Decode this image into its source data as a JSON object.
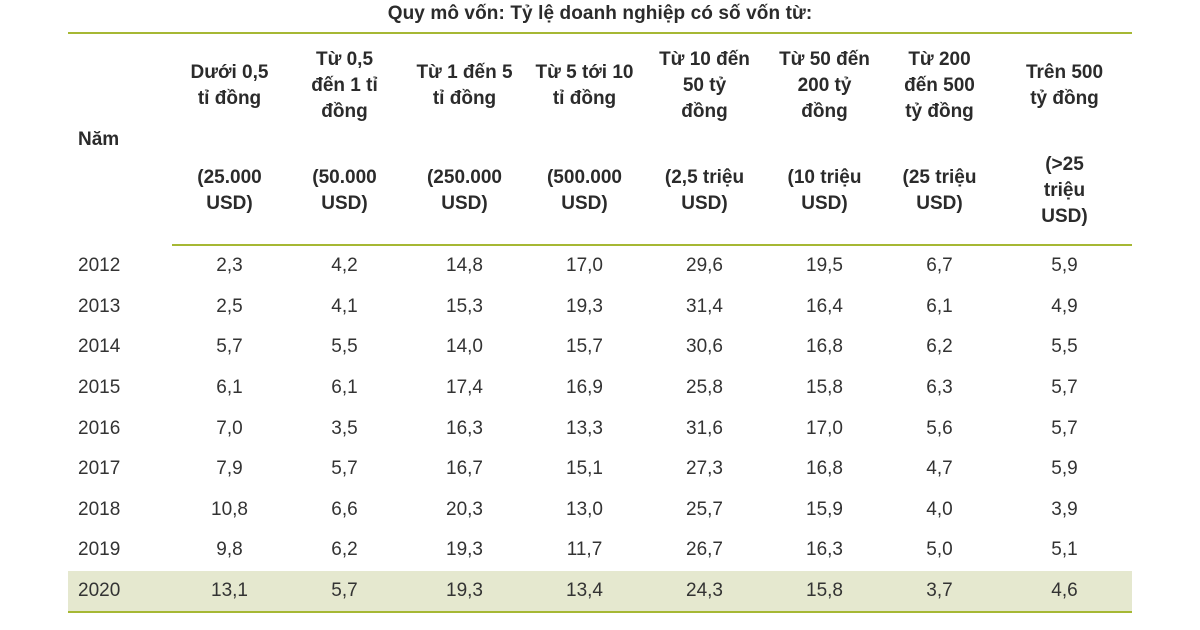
{
  "title": "Quy mô vốn: Tỷ lệ doanh nghiệp có số vốn từ:",
  "year_header": "Năm",
  "columns": [
    {
      "label_lines": [
        "Dưới 0,5",
        "tỉ đồng"
      ],
      "usd_lines": [
        "(25.000",
        "USD)"
      ]
    },
    {
      "label_lines": [
        "Từ 0,5",
        "đến 1 tỉ",
        "đồng"
      ],
      "usd_lines": [
        "(50.000",
        "USD)"
      ]
    },
    {
      "label_lines": [
        "Từ 1 đến 5",
        "tỉ đồng"
      ],
      "usd_lines": [
        "(250.000",
        "USD)"
      ]
    },
    {
      "label_lines": [
        "Từ 5 tới 10",
        "tỉ đồng"
      ],
      "usd_lines": [
        "(500.000",
        "USD)"
      ]
    },
    {
      "label_lines": [
        "Từ 10 đến",
        "50 tỷ",
        "đồng"
      ],
      "usd_lines": [
        "(2,5 triệu",
        "USD)"
      ]
    },
    {
      "label_lines": [
        "Từ 50 đến",
        "200 tỷ",
        "đồng"
      ],
      "usd_lines": [
        "(10 triệu",
        "USD)"
      ]
    },
    {
      "label_lines": [
        "Từ 200",
        "đến 500",
        "tỷ đồng"
      ],
      "usd_lines": [
        "(25 triệu",
        "USD)"
      ]
    },
    {
      "label_lines": [
        "Trên 500",
        "tỷ đồng"
      ],
      "usd_lines": [
        "(>25",
        "triệu",
        "USD)"
      ]
    }
  ],
  "rows": [
    {
      "year": "2012",
      "values": [
        "2,3",
        "4,2",
        "14,8",
        "17,0",
        "29,6",
        "19,5",
        "6,7",
        "5,9"
      ]
    },
    {
      "year": "2013",
      "values": [
        "2,5",
        "4,1",
        "15,3",
        "19,3",
        "31,4",
        "16,4",
        "6,1",
        "4,9"
      ]
    },
    {
      "year": "2014",
      "values": [
        "5,7",
        "5,5",
        "14,0",
        "15,7",
        "30,6",
        "16,8",
        "6,2",
        "5,5"
      ]
    },
    {
      "year": "2015",
      "values": [
        "6,1",
        "6,1",
        "17,4",
        "16,9",
        "25,8",
        "15,8",
        "6,3",
        "5,7"
      ]
    },
    {
      "year": "2016",
      "values": [
        "7,0",
        "3,5",
        "16,3",
        "13,3",
        "31,6",
        "17,0",
        "5,6",
        "5,7"
      ]
    },
    {
      "year": "2017",
      "values": [
        "7,9",
        "5,7",
        "16,7",
        "15,1",
        "27,3",
        "16,8",
        "4,7",
        "5,9"
      ]
    },
    {
      "year": "2018",
      "values": [
        "10,8",
        "6,6",
        "20,3",
        "13,0",
        "25,7",
        "15,9",
        "4,0",
        "3,9"
      ]
    },
    {
      "year": "2019",
      "values": [
        "9,8",
        "6,2",
        "19,3",
        "11,7",
        "26,7",
        "16,3",
        "5,0",
        "5,1"
      ]
    },
    {
      "year": "2020",
      "values": [
        "13,1",
        "5,7",
        "19,3",
        "13,4",
        "24,3",
        "15,8",
        "3,7",
        "4,6"
      ]
    }
  ],
  "highlighted_year": "2020",
  "colors": {
    "rule": "#a6b834",
    "highlight_row": "#e5e8cf",
    "text": "#262626"
  }
}
